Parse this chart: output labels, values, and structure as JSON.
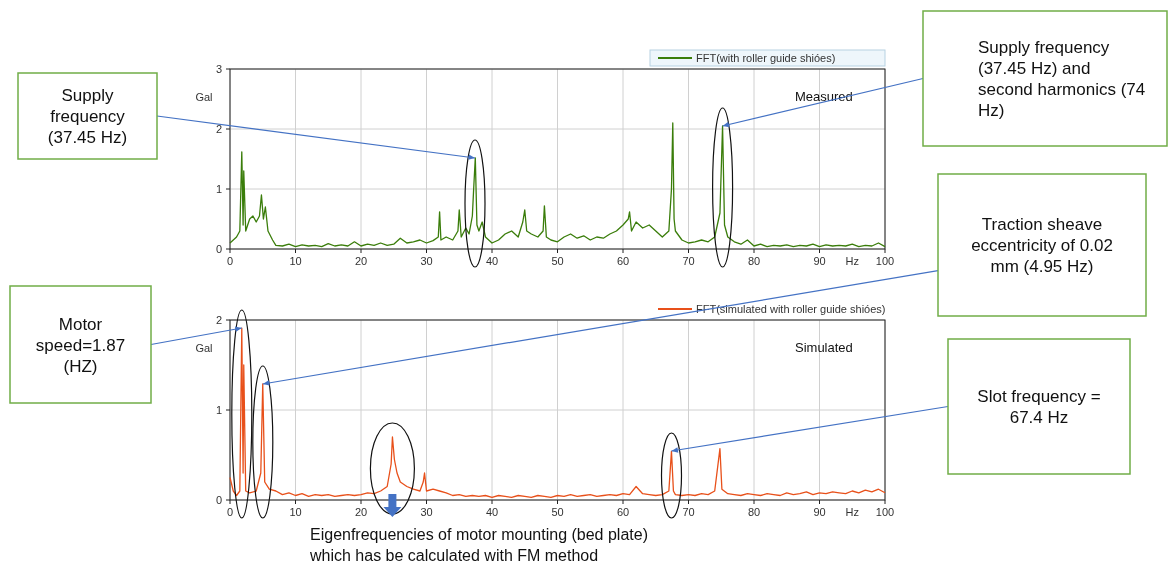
{
  "chart_data": [
    {
      "type": "line",
      "xlabel": "Hz",
      "ylabel": "Gal",
      "xlim": [
        0,
        100
      ],
      "ylim": [
        0,
        3
      ],
      "xticks": [
        0,
        10,
        20,
        30,
        40,
        50,
        60,
        70,
        80,
        90,
        100
      ],
      "yticks": [
        0,
        1,
        2,
        3
      ],
      "grid": true,
      "legend": "top right",
      "series": [
        {
          "name": "FFT(with roller guide shióes)",
          "color": "#3a7d0a",
          "x": [
            0,
            0.5,
            1,
            1.5,
            1.8,
            2.0,
            2.1,
            2.4,
            3,
            3.5,
            4,
            4.5,
            4.8,
            5.1,
            5.4,
            5.8,
            6.5,
            7,
            8,
            9,
            10,
            11,
            12,
            13,
            14,
            15,
            16,
            17,
            18,
            19,
            20,
            21,
            22,
            23,
            24,
            25,
            26,
            27,
            28,
            29,
            30,
            31,
            31.8,
            32,
            32.2,
            33,
            34,
            34.8,
            35,
            35.3,
            36,
            36.5,
            37,
            37.2,
            37.45,
            37.7,
            38,
            38.5,
            39,
            40,
            41,
            42,
            43,
            44,
            44.7,
            45,
            45.3,
            46,
            47,
            47.8,
            48,
            48.3,
            49,
            50,
            51,
            52,
            53,
            54,
            55,
            56,
            57,
            58,
            59,
            60,
            60.8,
            61,
            61.3,
            62,
            63,
            64,
            65,
            66,
            67,
            67.4,
            67.6,
            67.8,
            68,
            69,
            70,
            71,
            72,
            73,
            74,
            74.8,
            75.2,
            75.5,
            76,
            77,
            78,
            79,
            80,
            81,
            82,
            83,
            84,
            85,
            86,
            87,
            88,
            89,
            90,
            91,
            92,
            93,
            94,
            95,
            96,
            97,
            98,
            99,
            100
          ],
          "values": [
            0.1,
            0.15,
            0.2,
            0.3,
            1.62,
            0.4,
            1.3,
            0.3,
            0.5,
            0.55,
            0.45,
            0.55,
            0.9,
            0.5,
            0.7,
            0.3,
            0.15,
            0.06,
            0.05,
            0.08,
            0.04,
            0.07,
            0.05,
            0.06,
            0.04,
            0.09,
            0.05,
            0.07,
            0.05,
            0.12,
            0.05,
            0.08,
            0.06,
            0.1,
            0.06,
            0.08,
            0.18,
            0.1,
            0.12,
            0.15,
            0.1,
            0.14,
            0.2,
            0.62,
            0.15,
            0.2,
            0.15,
            0.3,
            0.65,
            0.2,
            0.35,
            0.25,
            0.55,
            1.0,
            1.52,
            0.4,
            0.3,
            0.45,
            0.2,
            0.1,
            0.15,
            0.25,
            0.3,
            0.2,
            0.45,
            0.65,
            0.3,
            0.25,
            0.2,
            0.3,
            0.72,
            0.2,
            0.15,
            0.12,
            0.2,
            0.25,
            0.18,
            0.22,
            0.15,
            0.2,
            0.18,
            0.25,
            0.3,
            0.4,
            0.5,
            0.62,
            0.3,
            0.45,
            0.35,
            0.4,
            0.3,
            0.2,
            0.3,
            1.0,
            2.1,
            0.5,
            0.3,
            0.15,
            0.1,
            0.12,
            0.15,
            0.12,
            0.2,
            0.6,
            2.05,
            0.4,
            0.2,
            0.12,
            0.08,
            0.15,
            0.05,
            0.08,
            0.04,
            0.06,
            0.05,
            0.07,
            0.04,
            0.06,
            0.05,
            0.08,
            0.04,
            0.07,
            0.05,
            0.06,
            0.05,
            0.08,
            0.04,
            0.06,
            0.05,
            0.1,
            0.04
          ]
        }
      ],
      "annotations": [
        "Measured",
        "Supply frequency (37.45 Hz)",
        "Supply frequency (37.45 Hz) and second harmonics (74 Hz)"
      ]
    },
    {
      "type": "line",
      "xlabel": "Hz",
      "ylabel": "Gal",
      "xlim": [
        0,
        100
      ],
      "ylim": [
        0,
        2
      ],
      "xticks": [
        0,
        10,
        20,
        30,
        40,
        50,
        60,
        70,
        80,
        90,
        100
      ],
      "yticks": [
        0,
        1,
        2
      ],
      "grid": true,
      "legend": "top right",
      "series": [
        {
          "name": "FFT(simulated with roller guide shióes)",
          "color": "#e8501a",
          "x": [
            0,
            0.5,
            1,
            1.5,
            1.8,
            2.0,
            2.1,
            2.4,
            3,
            4,
            4.7,
            5.0,
            5.3,
            6,
            7,
            8,
            9,
            10,
            11,
            12,
            13,
            14,
            15,
            16,
            17,
            18,
            19,
            20,
            21,
            22,
            23,
            24,
            24.6,
            24.8,
            25.1,
            25.5,
            26,
            27,
            28,
            29,
            29.5,
            29.7,
            30,
            31,
            32,
            33,
            34,
            35,
            36,
            37,
            38,
            39,
            40,
            41,
            42,
            43,
            44,
            45,
            46,
            47,
            48,
            49,
            50,
            51,
            52,
            53,
            54,
            55,
            56,
            57,
            58,
            59,
            60,
            61,
            62,
            63,
            64,
            65,
            66,
            67,
            67.4,
            67.7,
            68,
            69,
            70,
            71,
            72,
            73,
            74,
            74.8,
            75.1,
            76,
            77,
            78,
            79,
            80,
            81,
            82,
            83,
            84,
            85,
            86,
            87,
            88,
            89,
            90,
            91,
            92,
            93,
            94,
            95,
            96,
            97,
            98,
            99,
            100
          ],
          "values": [
            0.25,
            0.1,
            0.05,
            0.1,
            1.91,
            0.3,
            1.5,
            0.1,
            0.08,
            0.1,
            0.3,
            1.29,
            0.2,
            0.12,
            0.1,
            0.06,
            0.08,
            0.05,
            0.07,
            0.04,
            0.06,
            0.05,
            0.06,
            0.04,
            0.05,
            0.06,
            0.05,
            0.06,
            0.08,
            0.07,
            0.1,
            0.15,
            0.4,
            0.7,
            0.45,
            0.3,
            0.2,
            0.15,
            0.12,
            0.1,
            0.2,
            0.3,
            0.1,
            0.12,
            0.1,
            0.08,
            0.05,
            0.06,
            0.04,
            0.05,
            0.04,
            0.05,
            0.03,
            0.05,
            0.04,
            0.03,
            0.05,
            0.04,
            0.03,
            0.05,
            0.04,
            0.03,
            0.05,
            0.04,
            0.06,
            0.04,
            0.05,
            0.06,
            0.04,
            0.05,
            0.06,
            0.05,
            0.07,
            0.06,
            0.15,
            0.07,
            0.06,
            0.05,
            0.06,
            0.1,
            0.54,
            0.1,
            0.06,
            0.05,
            0.06,
            0.05,
            0.07,
            0.06,
            0.1,
            0.57,
            0.12,
            0.07,
            0.06,
            0.05,
            0.07,
            0.06,
            0.05,
            0.07,
            0.06,
            0.05,
            0.08,
            0.06,
            0.07,
            0.09,
            0.06,
            0.08,
            0.07,
            0.09,
            0.08,
            0.07,
            0.1,
            0.08,
            0.11,
            0.09,
            0.12,
            0.08
          ]
        }
      ],
      "annotations": [
        "Simulated",
        "Motor speed=1.87 (HZ)",
        "Traction sheave eccentricity of 0.02 mm (4.95 Hz)",
        "Slot frequency = 67.4 Hz",
        "Eigenfrequencies of motor mounting (bed plate) which has be calculated with FM method"
      ]
    }
  ]
}
